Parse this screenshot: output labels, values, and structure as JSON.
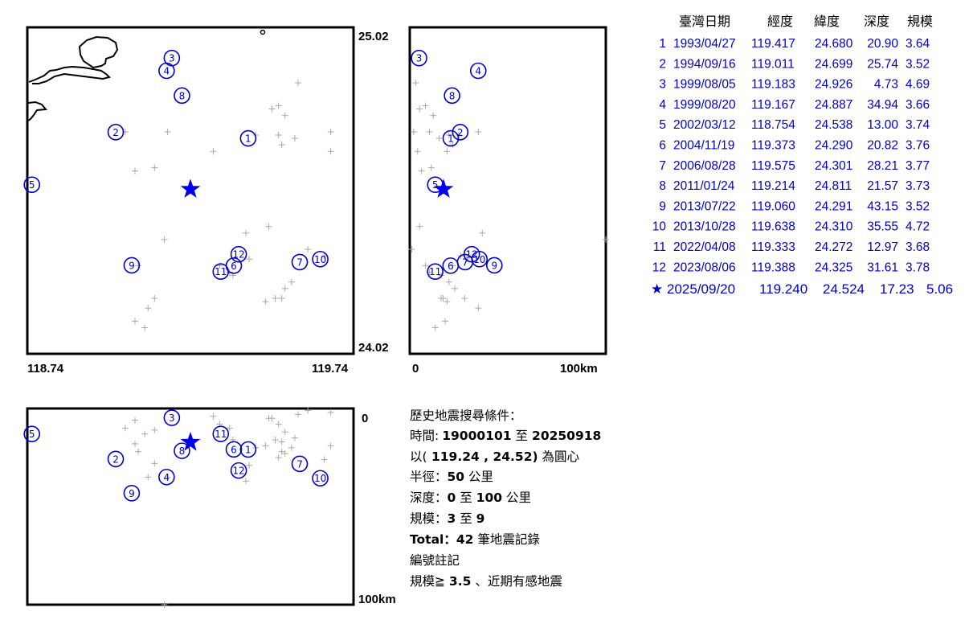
{
  "map": {
    "lon_min": 118.74,
    "lon_max": 119.74,
    "lat_min": 24.02,
    "lat_max": 25.02,
    "labels": {
      "lat_top": "25.02",
      "lat_bottom": "24.02",
      "lon_left": "118.74",
      "lon_right": "119.74"
    }
  },
  "lat_depth_section": {
    "label_zero": "0",
    "label_max": "100km",
    "depth_max": 100
  },
  "lon_depth_section": {
    "label_zero": "0",
    "label_max": "100km",
    "depth_max": 100
  },
  "table": {
    "headers": [
      "臺灣日期",
      "經度",
      "緯度",
      "深度",
      "規模"
    ],
    "rows": [
      {
        "no": "1",
        "date": "1993/04/27",
        "lon": "119.417",
        "lat": "24.680",
        "depth": "20.90",
        "mag": "3.64"
      },
      {
        "no": "2",
        "date": "1994/09/16",
        "lon": "119.011",
        "lat": "24.699",
        "depth": "25.74",
        "mag": "3.52"
      },
      {
        "no": "3",
        "date": "1999/08/05",
        "lon": "119.183",
        "lat": "24.926",
        "depth": "4.73",
        "mag": "4.69"
      },
      {
        "no": "4",
        "date": "1999/08/20",
        "lon": "119.167",
        "lat": "24.887",
        "depth": "34.94",
        "mag": "3.66"
      },
      {
        "no": "5",
        "date": "2002/03/12",
        "lon": "118.754",
        "lat": "24.538",
        "depth": "13.00",
        "mag": "3.74"
      },
      {
        "no": "6",
        "date": "2004/11/19",
        "lon": "119.373",
        "lat": "24.290",
        "depth": "20.82",
        "mag": "3.76"
      },
      {
        "no": "7",
        "date": "2006/08/28",
        "lon": "119.575",
        "lat": "24.301",
        "depth": "28.21",
        "mag": "3.77"
      },
      {
        "no": "8",
        "date": "2011/01/24",
        "lon": "119.214",
        "lat": "24.811",
        "depth": "21.57",
        "mag": "3.73"
      },
      {
        "no": "9",
        "date": "2013/07/22",
        "lon": "119.060",
        "lat": "24.291",
        "depth": "43.15",
        "mag": "3.52"
      },
      {
        "no": "10",
        "date": "2013/10/28",
        "lon": "119.638",
        "lat": "24.310",
        "depth": "35.55",
        "mag": "4.72"
      },
      {
        "no": "11",
        "date": "2022/04/08",
        "lon": "119.333",
        "lat": "24.272",
        "depth": "12.97",
        "mag": "3.68"
      },
      {
        "no": "12",
        "date": "2023/08/06",
        "lon": "119.388",
        "lat": "24.325",
        "depth": "31.61",
        "mag": "3.78"
      }
    ],
    "current": {
      "symbol": "★",
      "date": "2025/09/20",
      "lon": "119.240",
      "lat": "24.524",
      "depth": "17.23",
      "mag": "5.06"
    }
  },
  "search_info": {
    "title": "歷史地震搜尋條件：",
    "time_label": "時間:",
    "time_from": "19000101",
    "time_to_word": "至",
    "time_to": "20250918",
    "center_prefix": "以(",
    "center_value": " 119.24 , 24.52)",
    "center_suffix": " 為圓心",
    "radius_label": "半徑：",
    "radius_value": "50",
    "radius_unit": " 公里",
    "depth_label": "深度：",
    "depth_from": "0",
    "depth_to_word": " 至 ",
    "depth_to": "100",
    "depth_unit": " 公里",
    "mag_label": "規模：",
    "mag_from": "3",
    "mag_to_word": " 至 ",
    "mag_to": "9",
    "total_label": "Total：",
    "total_value": "42",
    "total_unit": " 筆地震記錄",
    "note1": "編號註記",
    "note2_prefix": "規模≧ ",
    "note2_value": "3.5",
    "note2_suffix": " 、近期有感地震"
  },
  "background_events": [
    {
      "lon": 119.44,
      "lat": 24.69,
      "depth": 20.0
    },
    {
      "lon": 119.57,
      "lat": 24.85,
      "depth": 3.0
    },
    {
      "lon": 119.51,
      "lat": 24.78,
      "depth": 8.0
    },
    {
      "lon": 119.49,
      "lat": 24.77,
      "depth": 5.0
    },
    {
      "lon": 119.53,
      "lat": 24.75,
      "depth": 12.0
    },
    {
      "lon": 119.67,
      "lat": 24.7,
      "depth": 2.0
    },
    {
      "lon": 119.52,
      "lat": 24.66,
      "depth": 22.0
    },
    {
      "lon": 119.56,
      "lat": 24.68,
      "depth": 15.0
    },
    {
      "lon": 119.51,
      "lat": 24.69,
      "depth": 25.0
    },
    {
      "lon": 119.67,
      "lat": 24.64,
      "depth": 19.0
    },
    {
      "lon": 119.04,
      "lat": 24.7,
      "depth": 10.0
    },
    {
      "lon": 119.07,
      "lat": 24.58,
      "depth": 6.0
    },
    {
      "lon": 119.17,
      "lat": 24.7,
      "depth": 35.0
    },
    {
      "lon": 119.13,
      "lat": 24.59,
      "depth": 11.0
    },
    {
      "lon": 119.31,
      "lat": 24.64,
      "depth": 4.0
    },
    {
      "lon": 119.41,
      "lat": 24.39,
      "depth": 37.0
    },
    {
      "lon": 119.16,
      "lat": 24.37,
      "depth": 100.0
    },
    {
      "lon": 119.48,
      "lat": 24.41,
      "depth": 5.0
    },
    {
      "lon": 119.08,
      "lat": 24.29,
      "depth": 22.0
    },
    {
      "lon": 119.42,
      "lat": 24.31,
      "depth": 29.0
    },
    {
      "lon": 119.6,
      "lat": 24.34,
      "depth": 1.0
    },
    {
      "lon": 119.65,
      "lat": 24.32,
      "depth": 26.0
    },
    {
      "lon": 119.37,
      "lat": 24.26,
      "depth": 16.0
    },
    {
      "lon": 119.36,
      "lat": 24.27,
      "depth": 10.0
    },
    {
      "lon": 119.33,
      "lat": 24.29,
      "depth": 8.0
    },
    {
      "lon": 119.53,
      "lat": 24.22,
      "depth": 23.0
    },
    {
      "lon": 119.55,
      "lat": 24.24,
      "depth": 20.0
    },
    {
      "lon": 119.5,
      "lat": 24.19,
      "depth": 16.0
    },
    {
      "lon": 119.52,
      "lat": 24.19,
      "depth": 17.0
    },
    {
      "lon": 119.47,
      "lat": 24.18,
      "depth": 19.0
    },
    {
      "lon": 119.11,
      "lat": 24.16,
      "depth": 35.0
    },
    {
      "lon": 119.07,
      "lat": 24.12,
      "depth": 18.0
    },
    {
      "lon": 119.1,
      "lat": 24.1,
      "depth": 13.0
    },
    {
      "lon": 119.13,
      "lat": 24.19,
      "depth": 28.0
    }
  ],
  "colors": {
    "event": "#0000d0",
    "star": "#0000ee",
    "cross": "#a9a9a9"
  }
}
